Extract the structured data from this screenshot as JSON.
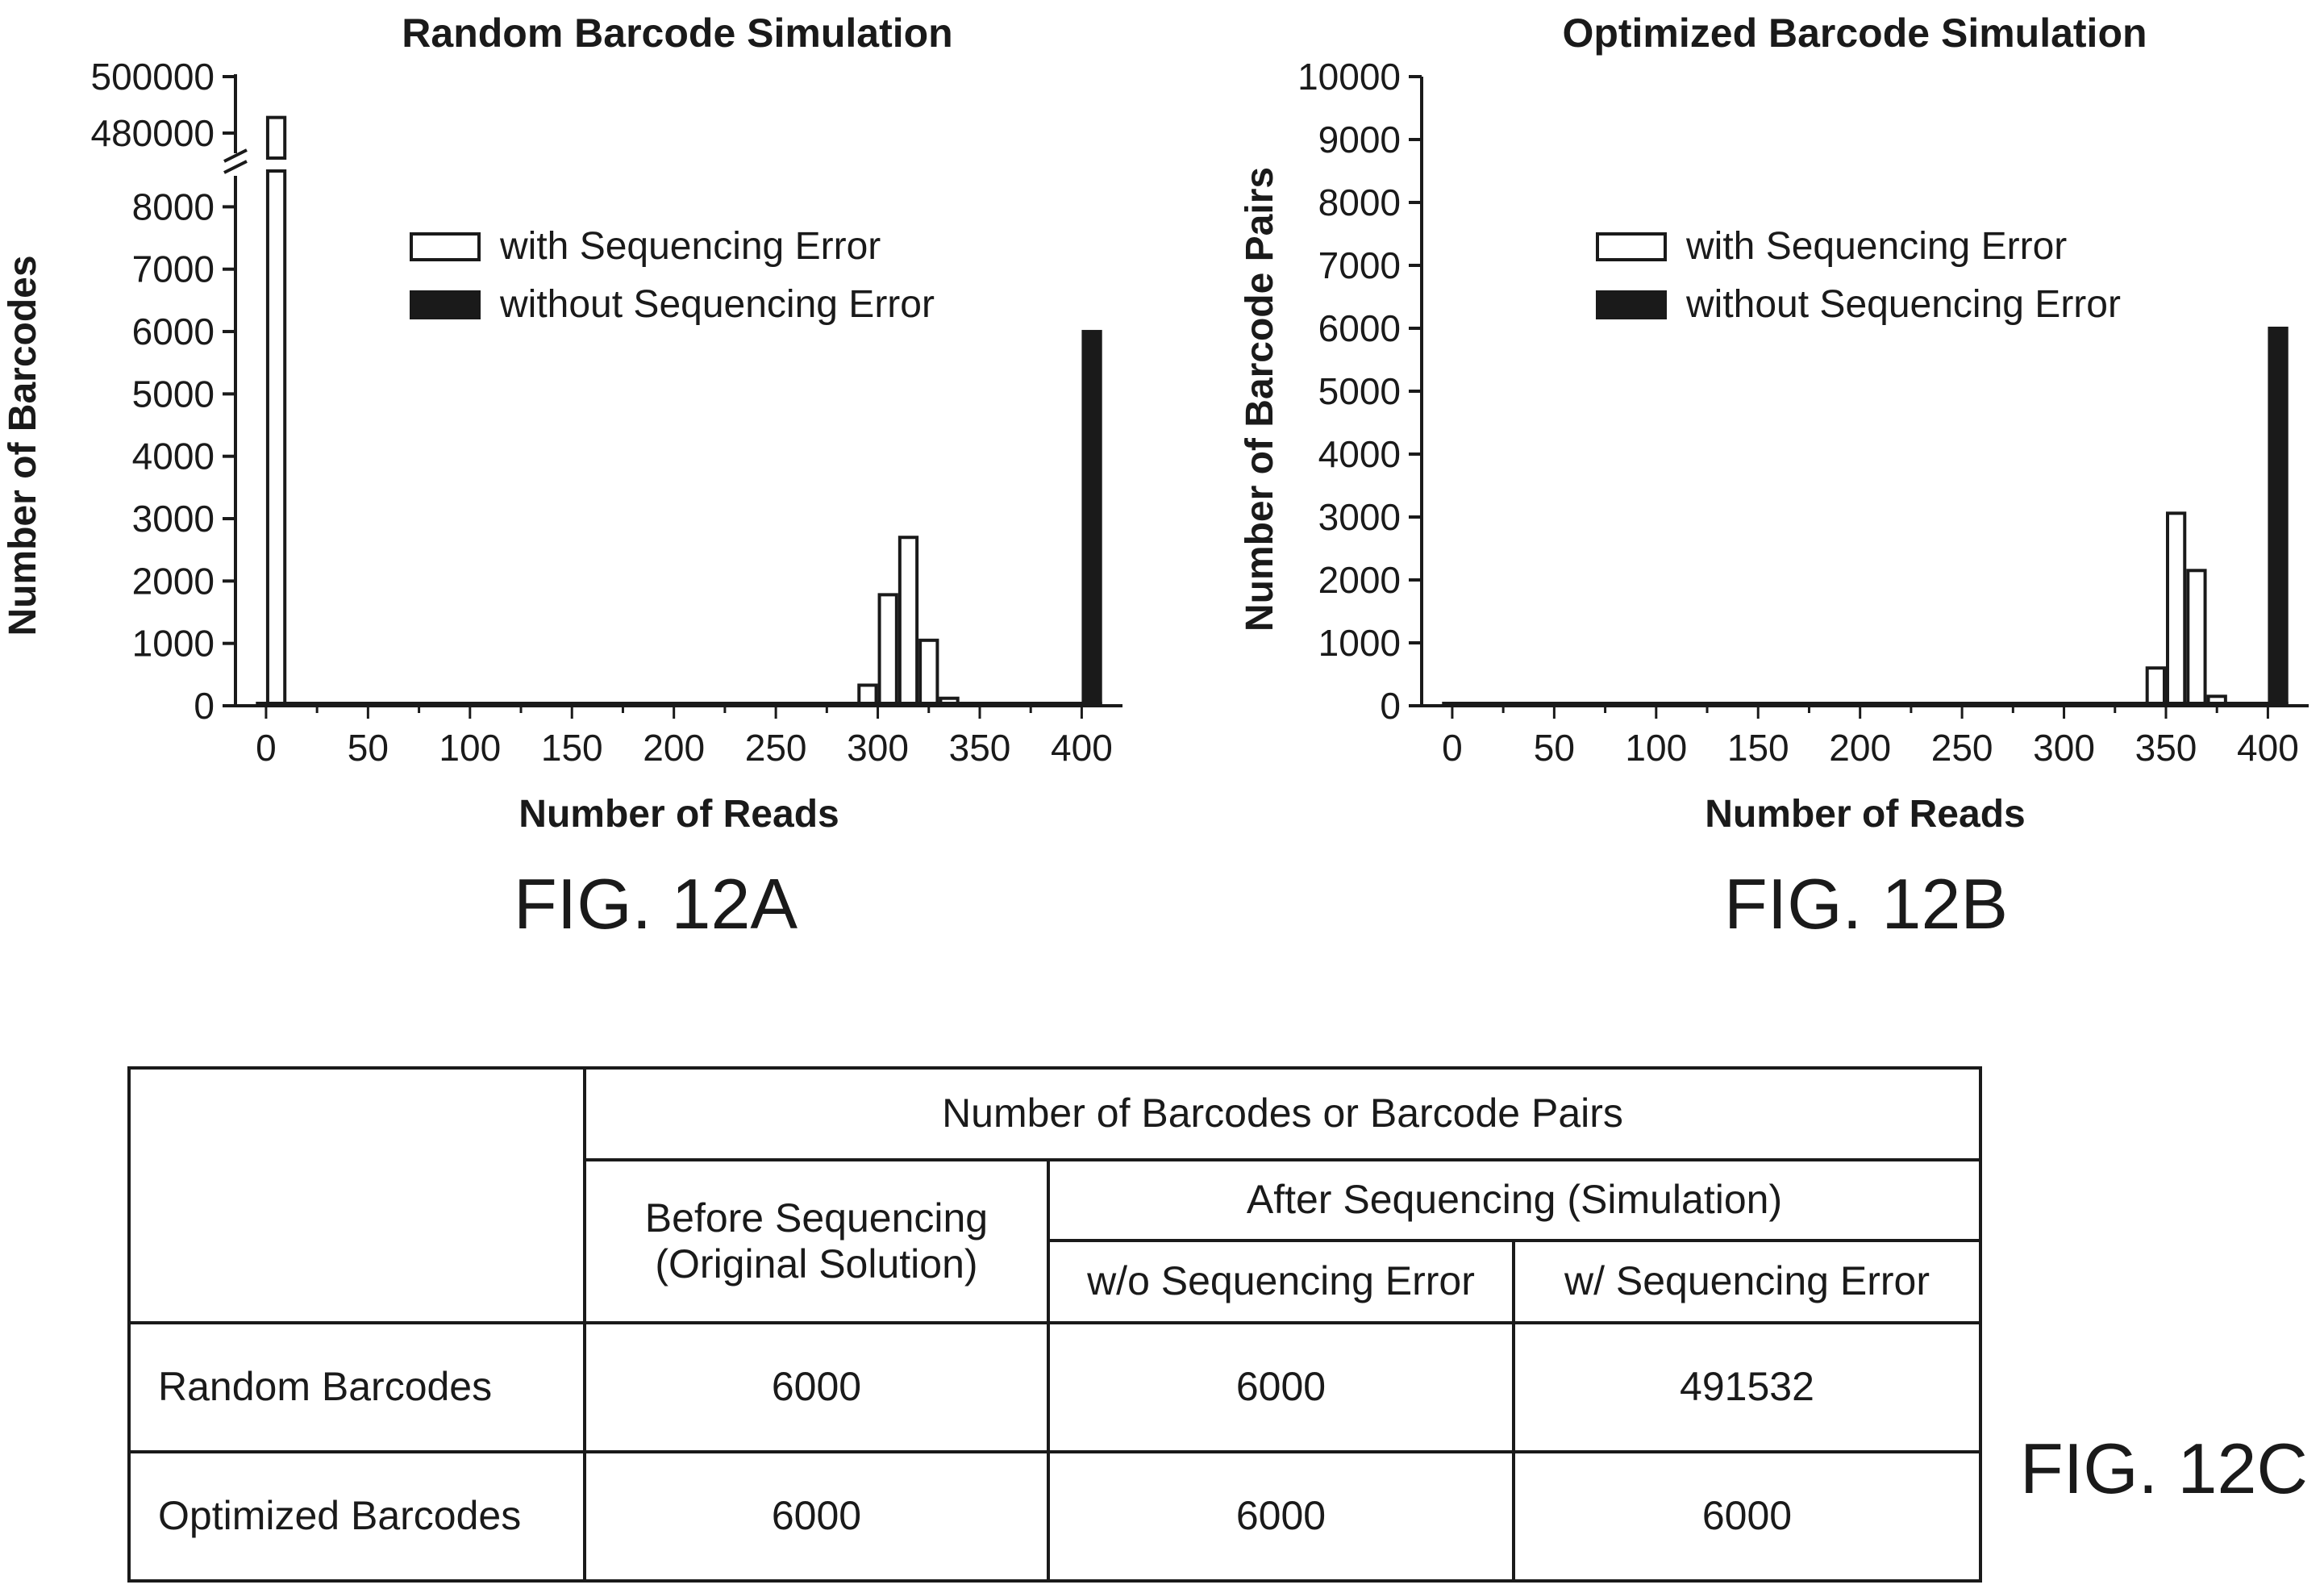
{
  "chart_data": [
    {
      "type": "bar",
      "title": "Random Barcode Simulation",
      "xlabel": "Number of Reads",
      "ylabel": "Number of Barcodes",
      "x_ticks": [
        "0",
        "50",
        "100",
        "150",
        "200",
        "250",
        "300",
        "350",
        "400"
      ],
      "y_ticks": [
        "0",
        "1000",
        "2000",
        "3000",
        "4000",
        "5000",
        "6000",
        "7000",
        "8000"
      ],
      "y_break_ticks": [
        "480000",
        "500000"
      ],
      "y_axis_break": true,
      "xlim": [
        -15,
        420
      ],
      "ylim": [
        0,
        8600
      ],
      "bin_width": 10,
      "legend_position": "top-right",
      "series": [
        {
          "name": "with Sequencing Error",
          "fill": "#ffffff",
          "x": [
            5,
            295,
            305,
            315,
            325,
            335
          ],
          "values": [
            485532,
            330,
            1780,
            2700,
            1050,
            120
          ]
        },
        {
          "name": "without Sequencing Error",
          "fill": "#1a1a1a",
          "x": [
            405
          ],
          "values": [
            6000
          ]
        }
      ]
    },
    {
      "type": "bar",
      "title": "Optimized Barcode Simulation",
      "xlabel": "Number of Reads",
      "ylabel": "Number of Barcode Pairs",
      "x_ticks": [
        "0",
        "50",
        "100",
        "150",
        "200",
        "250",
        "300",
        "350",
        "400"
      ],
      "y_ticks": [
        "0",
        "1000",
        "2000",
        "3000",
        "4000",
        "5000",
        "6000",
        "7000",
        "8000",
        "9000",
        "10000"
      ],
      "y_axis_break": false,
      "xlim": [
        -15,
        420
      ],
      "ylim": [
        0,
        10000
      ],
      "bin_width": 10,
      "legend_position": "top-right",
      "series": [
        {
          "name": "with Sequencing Error",
          "fill": "#ffffff",
          "x": [
            345,
            355,
            365,
            375
          ],
          "values": [
            600,
            3060,
            2150,
            150
          ]
        },
        {
          "name": "without Sequencing Error",
          "fill": "#1a1a1a",
          "x": [
            405
          ],
          "values": [
            6000
          ]
        }
      ]
    }
  ],
  "figure_labels": {
    "a": "FIG. 12A",
    "b": "FIG. 12B",
    "c": "FIG. 12C"
  },
  "table": {
    "header_group": "Number of Barcodes or Barcode Pairs",
    "before_line1": "Before Sequencing",
    "before_line2": "(Original Solution)",
    "after_group": "After Sequencing (Simulation)",
    "col_wo": "w/o Sequencing Error",
    "col_w": "w/ Sequencing Error",
    "rows": [
      {
        "label": "Random Barcodes",
        "before": "6000",
        "wo": "6000",
        "w": "491532"
      },
      {
        "label": "Optimized Barcodes",
        "before": "6000",
        "wo": "6000",
        "w": "6000"
      }
    ]
  }
}
